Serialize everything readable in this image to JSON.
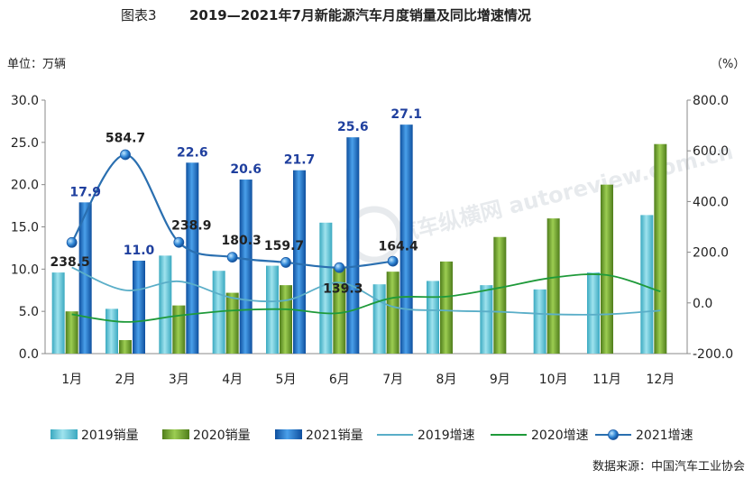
{
  "figure": {
    "number": "图表3",
    "title": "2019—2021年7月新能源汽车月度销量及同比增速情况",
    "left_unit": "单位：万辆",
    "right_unit": "（%）",
    "source": "数据来源：中国汽车工业协会",
    "watermark": "汽车纵横网 autoreview.com.cn"
  },
  "chart_data": {
    "type": "bar",
    "categories": [
      "1月",
      "2月",
      "3月",
      "4月",
      "5月",
      "6月",
      "7月",
      "8月",
      "9月",
      "10月",
      "11月",
      "12月"
    ],
    "y_left": {
      "range": [
        0,
        30
      ],
      "ticks": [
        0,
        5,
        10,
        15,
        20,
        25,
        30
      ],
      "tick_labels": [
        "0.0",
        "5.0",
        "10.0",
        "15.0",
        "20.0",
        "25.0",
        "30.0"
      ]
    },
    "y_right": {
      "range": [
        -200,
        800
      ],
      "ticks": [
        -200,
        0,
        200,
        400,
        600,
        800
      ],
      "tick_labels": [
        "-200.0",
        "0.0",
        "200.0",
        "400.0",
        "600.0",
        "800.0"
      ]
    },
    "grid": false,
    "legend_position": "bottom",
    "bar_series": [
      {
        "name": "2019销量",
        "color": "#5bc4d8",
        "values": [
          9.6,
          5.3,
          11.6,
          9.8,
          10.4,
          15.5,
          8.2,
          8.6,
          8.1,
          7.6,
          9.6,
          16.4
        ]
      },
      {
        "name": "2020销量",
        "color": "#6f9a2e",
        "values": [
          5.0,
          1.6,
          5.7,
          7.2,
          8.1,
          10.2,
          9.7,
          10.9,
          13.8,
          16.0,
          20.0,
          24.8
        ]
      },
      {
        "name": "2021销量",
        "color": "#1f6fc4",
        "values": [
          17.9,
          11.0,
          22.6,
          20.6,
          21.7,
          25.6,
          27.1
        ],
        "labels": [
          "17.9",
          "11.0",
          "22.6",
          "20.6",
          "21.7",
          "25.6",
          "27.1"
        ]
      }
    ],
    "line_series": [
      {
        "name": "2019增速",
        "color": "#5aaec8",
        "axis": "right",
        "values": [
          140,
          50,
          85,
          20,
          10,
          80,
          -15,
          -30,
          -35,
          -45,
          -45,
          -30
        ]
      },
      {
        "name": "2020增速",
        "color": "#1f9a3a",
        "axis": "right",
        "values": [
          -45,
          -75,
          -50,
          -30,
          -25,
          -40,
          20,
          25,
          60,
          100,
          110,
          45
        ]
      },
      {
        "name": "2021增速",
        "color": "#2a6fb0",
        "axis": "right",
        "values": [
          238.5,
          584.7,
          238.9,
          180.3,
          159.7,
          139.3,
          164.4
        ],
        "labels": [
          "238.5",
          "584.7",
          "238.9",
          "180.3",
          "159.7",
          "139.3",
          "164.4"
        ]
      }
    ]
  }
}
